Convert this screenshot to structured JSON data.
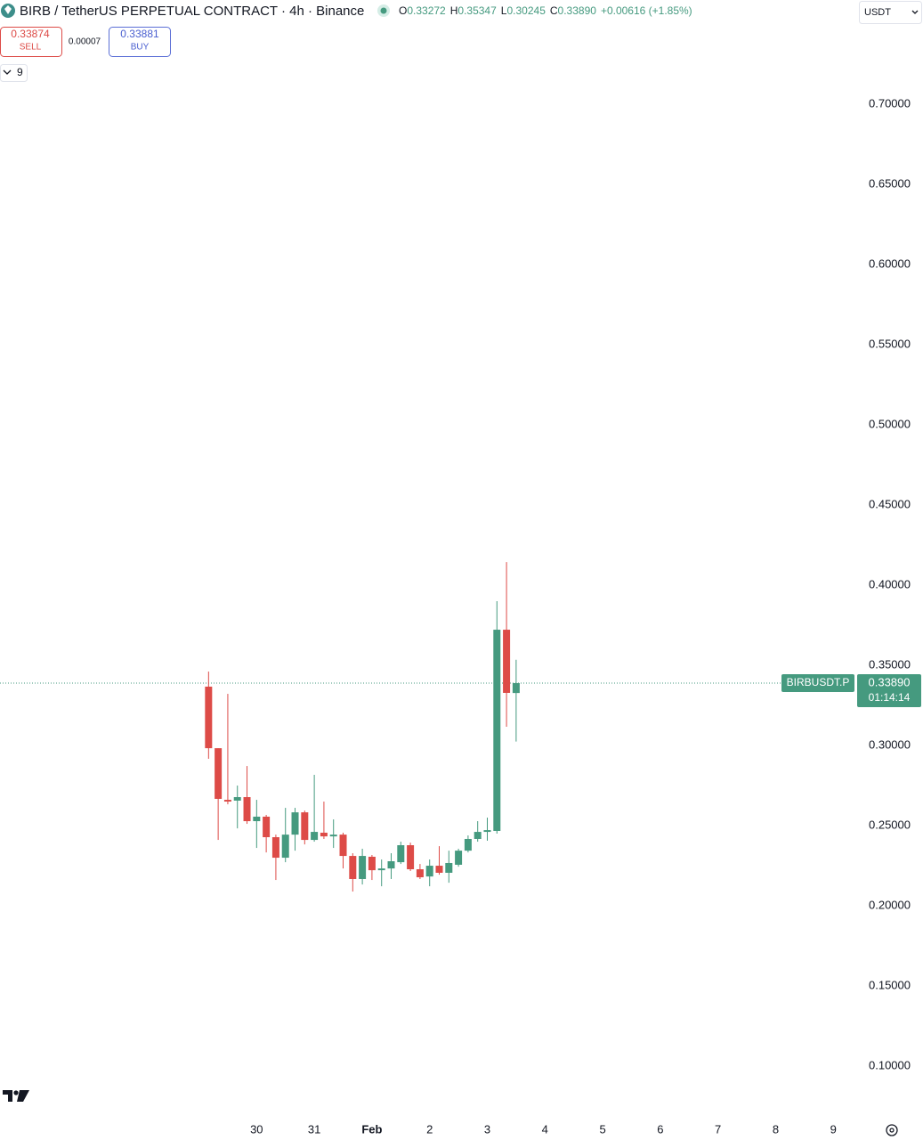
{
  "header": {
    "title": "BIRB / TetherUS PERPETUAL CONTRACT · 4h · Binance",
    "ohlc": [
      {
        "label": "O",
        "value": "0.33272"
      },
      {
        "label": "H",
        "value": "0.35347"
      },
      {
        "label": "L",
        "value": "0.30245"
      },
      {
        "label": "C",
        "value": "0.33890"
      }
    ],
    "change": "+0.00616 (+1.85%)"
  },
  "trade": {
    "sell_price": "0.33874",
    "sell_label": "SELL",
    "spread": "0.00007",
    "buy_price": "0.33881",
    "buy_label": "BUY"
  },
  "toolbar": {
    "indicator_count": "9",
    "currency": "USDT"
  },
  "chart_data": {
    "type": "candlestick",
    "x": [
      0,
      1,
      2,
      3,
      4,
      5,
      6,
      7,
      8,
      9,
      10,
      11,
      12,
      13,
      14,
      15,
      16,
      17,
      18,
      19,
      20,
      21,
      22,
      23,
      24,
      25,
      26,
      27,
      28,
      29,
      30,
      31,
      32
    ],
    "open": [
      0.3367,
      0.2983,
      0.2661,
      0.2656,
      0.2678,
      0.2528,
      0.2556,
      0.2428,
      0.23,
      0.2444,
      0.2583,
      0.2411,
      0.2456,
      0.2433,
      0.2444,
      0.2311,
      0.2167,
      0.2306,
      0.2222,
      0.2233,
      0.2272,
      0.2378,
      0.2228,
      0.2183,
      0.225,
      0.2206,
      0.2256,
      0.2344,
      0.2417,
      0.2461,
      0.2467,
      0.3722,
      0.33272
    ],
    "high": [
      0.3461,
      0.2983,
      0.3322,
      0.275,
      0.2872,
      0.2661,
      0.2567,
      0.2444,
      0.2611,
      0.2611,
      0.2594,
      0.2817,
      0.265,
      0.2539,
      0.2456,
      0.2328,
      0.2356,
      0.2317,
      0.2289,
      0.2328,
      0.24,
      0.2394,
      0.2261,
      0.2289,
      0.2372,
      0.2344,
      0.2356,
      0.2439,
      0.2528,
      0.255,
      0.39,
      0.4144,
      0.35347
    ],
    "low": [
      0.2917,
      0.2411,
      0.2633,
      0.2483,
      0.2511,
      0.2361,
      0.2333,
      0.2161,
      0.2272,
      0.2344,
      0.2383,
      0.24,
      0.2417,
      0.2361,
      0.2233,
      0.2089,
      0.2133,
      0.2161,
      0.2122,
      0.2167,
      0.2261,
      0.2217,
      0.2167,
      0.2122,
      0.2194,
      0.2144,
      0.2244,
      0.2333,
      0.24,
      0.2406,
      0.245,
      0.3117,
      0.30245
    ],
    "close": [
      0.2983,
      0.2667,
      0.265,
      0.2678,
      0.2528,
      0.2556,
      0.2428,
      0.23,
      0.2444,
      0.2583,
      0.2411,
      0.2461,
      0.2433,
      0.2444,
      0.2311,
      0.2167,
      0.2311,
      0.2222,
      0.2233,
      0.2278,
      0.2378,
      0.2228,
      0.2178,
      0.225,
      0.2206,
      0.2267,
      0.2344,
      0.2417,
      0.2461,
      0.2472,
      0.3722,
      0.3328,
      0.3389
    ],
    "up_color": "#459a7f",
    "down_color": "#dd4b47",
    "xlim": [
      -21.7,
      67.2
    ],
    "xticks": [
      {
        "value": 5,
        "label": "30"
      },
      {
        "value": 11,
        "label": "31"
      },
      {
        "value": 17,
        "label": "Feb"
      },
      {
        "value": 23,
        "label": "2"
      },
      {
        "value": 29,
        "label": "3"
      },
      {
        "value": 35,
        "label": "4"
      },
      {
        "value": 41,
        "label": "5"
      },
      {
        "value": 47,
        "label": "6"
      },
      {
        "value": 53,
        "label": "7"
      },
      {
        "value": 59,
        "label": "8"
      },
      {
        "value": 65,
        "label": "9"
      }
    ],
    "ylim": [
      0.0706,
      0.7494
    ],
    "yticks": [
      {
        "value": 0.1,
        "label": "0.10000"
      },
      {
        "value": 0.15,
        "label": "0.15000"
      },
      {
        "value": 0.2,
        "label": "0.20000"
      },
      {
        "value": 0.25,
        "label": "0.25000"
      },
      {
        "value": 0.3,
        "label": "0.30000"
      },
      {
        "value": 0.35,
        "label": "0.35000"
      },
      {
        "value": 0.4,
        "label": "0.40000"
      },
      {
        "value": 0.45,
        "label": "0.45000"
      },
      {
        "value": 0.5,
        "label": "0.50000"
      },
      {
        "value": 0.55,
        "label": "0.55000"
      },
      {
        "value": 0.6,
        "label": "0.60000"
      },
      {
        "value": 0.65,
        "label": "0.65000"
      },
      {
        "value": 0.7,
        "label": "0.70000"
      }
    ],
    "last_price": {
      "value": 0.3389,
      "label": "0.33890"
    },
    "symbol_label": "BIRBUSDT.P",
    "countdown": "01:14:14"
  }
}
